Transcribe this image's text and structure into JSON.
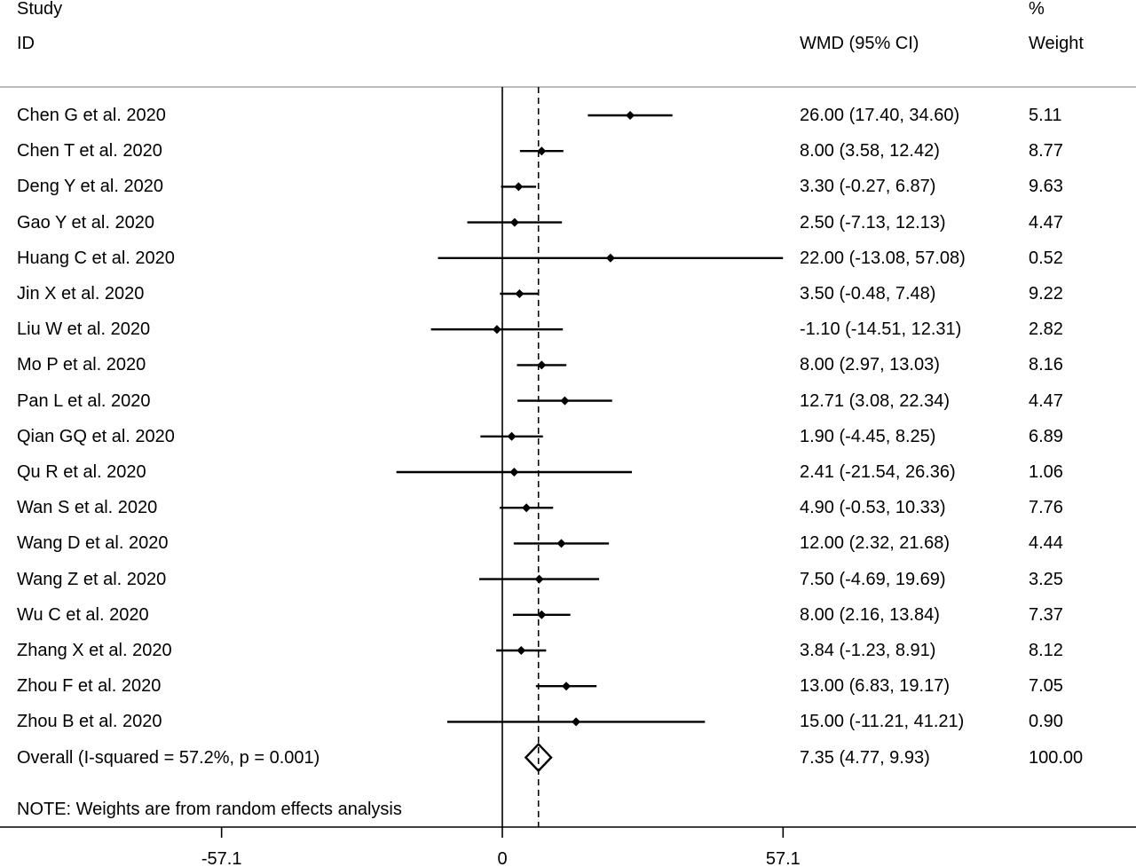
{
  "header": {
    "study_line1": "Study",
    "study_line2": "ID",
    "effect_label": "WMD (95% CI)",
    "weight_line1": "%",
    "weight_line2": "Weight"
  },
  "note": "NOTE: Weights are from random effects analysis",
  "chart_data": {
    "type": "forest",
    "x_axis": {
      "ticks": [
        -57.1,
        0,
        57.1
      ],
      "tick_labels": [
        "-57.1",
        "0",
        "57.1"
      ],
      "null_line": 0
    },
    "studies": [
      {
        "label": "Chen G et al. 2020",
        "wmd": 26.0,
        "lo": 17.4,
        "hi": 34.6,
        "ci_text": "26.00 (17.40, 34.60)",
        "weight": "5.11"
      },
      {
        "label": "Chen T et al. 2020",
        "wmd": 8.0,
        "lo": 3.58,
        "hi": 12.42,
        "ci_text": "8.00 (3.58, 12.42)",
        "weight": "8.77"
      },
      {
        "label": "Deng Y et al. 2020",
        "wmd": 3.3,
        "lo": -0.27,
        "hi": 6.87,
        "ci_text": "3.30 (-0.27, 6.87)",
        "weight": "9.63"
      },
      {
        "label": "Gao Y et al. 2020",
        "wmd": 2.5,
        "lo": -7.13,
        "hi": 12.13,
        "ci_text": "2.50 (-7.13, 12.13)",
        "weight": "4.47"
      },
      {
        "label": "Huang C et al. 2020",
        "wmd": 22.0,
        "lo": -13.08,
        "hi": 57.08,
        "ci_text": "22.00 (-13.08, 57.08)",
        "weight": "0.52"
      },
      {
        "label": "Jin X et al. 2020",
        "wmd": 3.5,
        "lo": -0.48,
        "hi": 7.48,
        "ci_text": "3.50 (-0.48, 7.48)",
        "weight": "9.22"
      },
      {
        "label": "Liu W et al. 2020",
        "wmd": -1.1,
        "lo": -14.51,
        "hi": 12.31,
        "ci_text": "-1.10 (-14.51, 12.31)",
        "weight": "2.82"
      },
      {
        "label": "Mo P et al. 2020",
        "wmd": 8.0,
        "lo": 2.97,
        "hi": 13.03,
        "ci_text": "8.00 (2.97, 13.03)",
        "weight": "8.16"
      },
      {
        "label": "Pan L et al. 2020",
        "wmd": 12.71,
        "lo": 3.08,
        "hi": 22.34,
        "ci_text": "12.71 (3.08, 22.34)",
        "weight": "4.47"
      },
      {
        "label": "Qian GQ et al. 2020",
        "wmd": 1.9,
        "lo": -4.45,
        "hi": 8.25,
        "ci_text": "1.90 (-4.45, 8.25)",
        "weight": "6.89"
      },
      {
        "label": "Qu R et al. 2020",
        "wmd": 2.41,
        "lo": -21.54,
        "hi": 26.36,
        "ci_text": "2.41 (-21.54, 26.36)",
        "weight": "1.06"
      },
      {
        "label": "Wan S et al. 2020",
        "wmd": 4.9,
        "lo": -0.53,
        "hi": 10.33,
        "ci_text": "4.90 (-0.53, 10.33)",
        "weight": "7.76"
      },
      {
        "label": "Wang D et al. 2020",
        "wmd": 12.0,
        "lo": 2.32,
        "hi": 21.68,
        "ci_text": "12.00 (2.32, 21.68)",
        "weight": "4.44"
      },
      {
        "label": "Wang Z et al. 2020",
        "wmd": 7.5,
        "lo": -4.69,
        "hi": 19.69,
        "ci_text": "7.50 (-4.69, 19.69)",
        "weight": "3.25"
      },
      {
        "label": "Wu C et al. 2020",
        "wmd": 8.0,
        "lo": 2.16,
        "hi": 13.84,
        "ci_text": "8.00 (2.16, 13.84)",
        "weight": "7.37"
      },
      {
        "label": "Zhang X et al. 2020",
        "wmd": 3.84,
        "lo": -1.23,
        "hi": 8.91,
        "ci_text": "3.84 (-1.23, 8.91)",
        "weight": "8.12"
      },
      {
        "label": "Zhou F et al. 2020",
        "wmd": 13.0,
        "lo": 6.83,
        "hi": 19.17,
        "ci_text": "13.00 (6.83, 19.17)",
        "weight": "7.05"
      },
      {
        "label": "Zhou B et al. 2020",
        "wmd": 15.0,
        "lo": -11.21,
        "hi": 41.21,
        "ci_text": "15.00 (-11.21, 41.21)",
        "weight": "0.90"
      }
    ],
    "overall": {
      "label": "Overall  (I-squared = 57.2%, p = 0.001)",
      "wmd": 7.35,
      "lo": 4.77,
      "hi": 9.93,
      "ci_text": "7.35 (4.77, 9.93)",
      "weight": "100.00"
    }
  }
}
